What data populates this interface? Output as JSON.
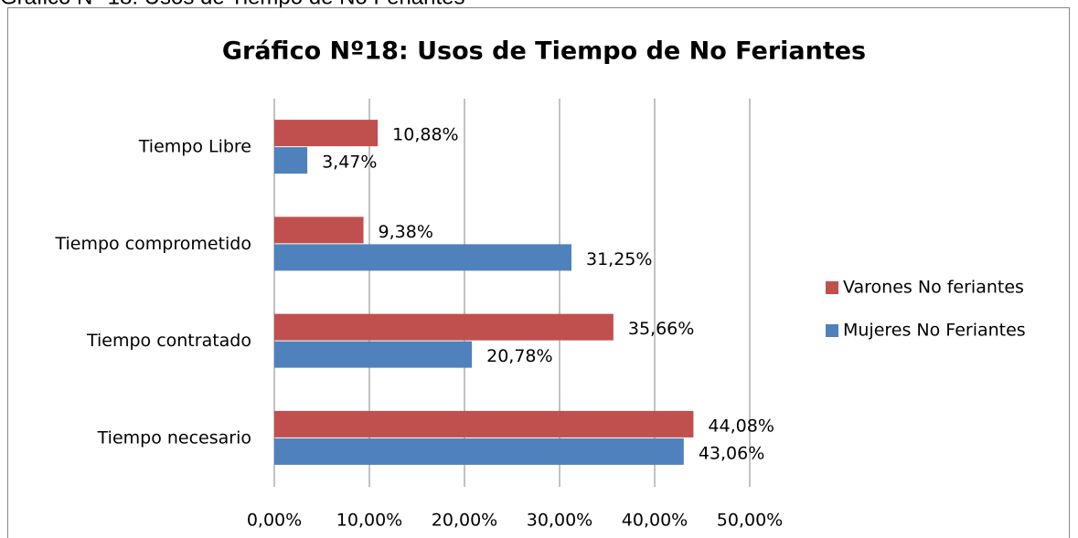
{
  "caption": "Gráfico N° 18: Usos de Tiempo de No Feriantes",
  "chart_data": {
    "type": "barh",
    "title": "Gráfico Nº18: Usos de Tiempo de No Feriantes",
    "categories": [
      "Tiempo Libre",
      "Tiempo comprometido",
      "Tiempo contratado",
      "Tiempo necesario"
    ],
    "series": [
      {
        "name": "Varones No feriantes",
        "color": "#c0504d",
        "values": [
          10.88,
          9.38,
          35.66,
          44.08
        ],
        "value_labels": [
          "10,88%",
          "9,38%",
          "35,66%",
          "44,08%"
        ]
      },
      {
        "name": "Mujeres No Feriantes",
        "color": "#4f81bd",
        "values": [
          3.47,
          31.25,
          20.78,
          43.06
        ],
        "value_labels": [
          "3,47%",
          "31,25%",
          "20,78%",
          "43,06%"
        ]
      }
    ],
    "xlim": [
      0,
      50
    ],
    "xticks": [
      {
        "value": 0,
        "label": "0,00%"
      },
      {
        "value": 10,
        "label": "10,00%"
      },
      {
        "value": 20,
        "label": "20,00%"
      },
      {
        "value": 30,
        "label": "30,00%"
      },
      {
        "value": 40,
        "label": "40,00%"
      },
      {
        "value": 50,
        "label": "50,00%"
      }
    ],
    "grid": true,
    "legend": "right"
  }
}
